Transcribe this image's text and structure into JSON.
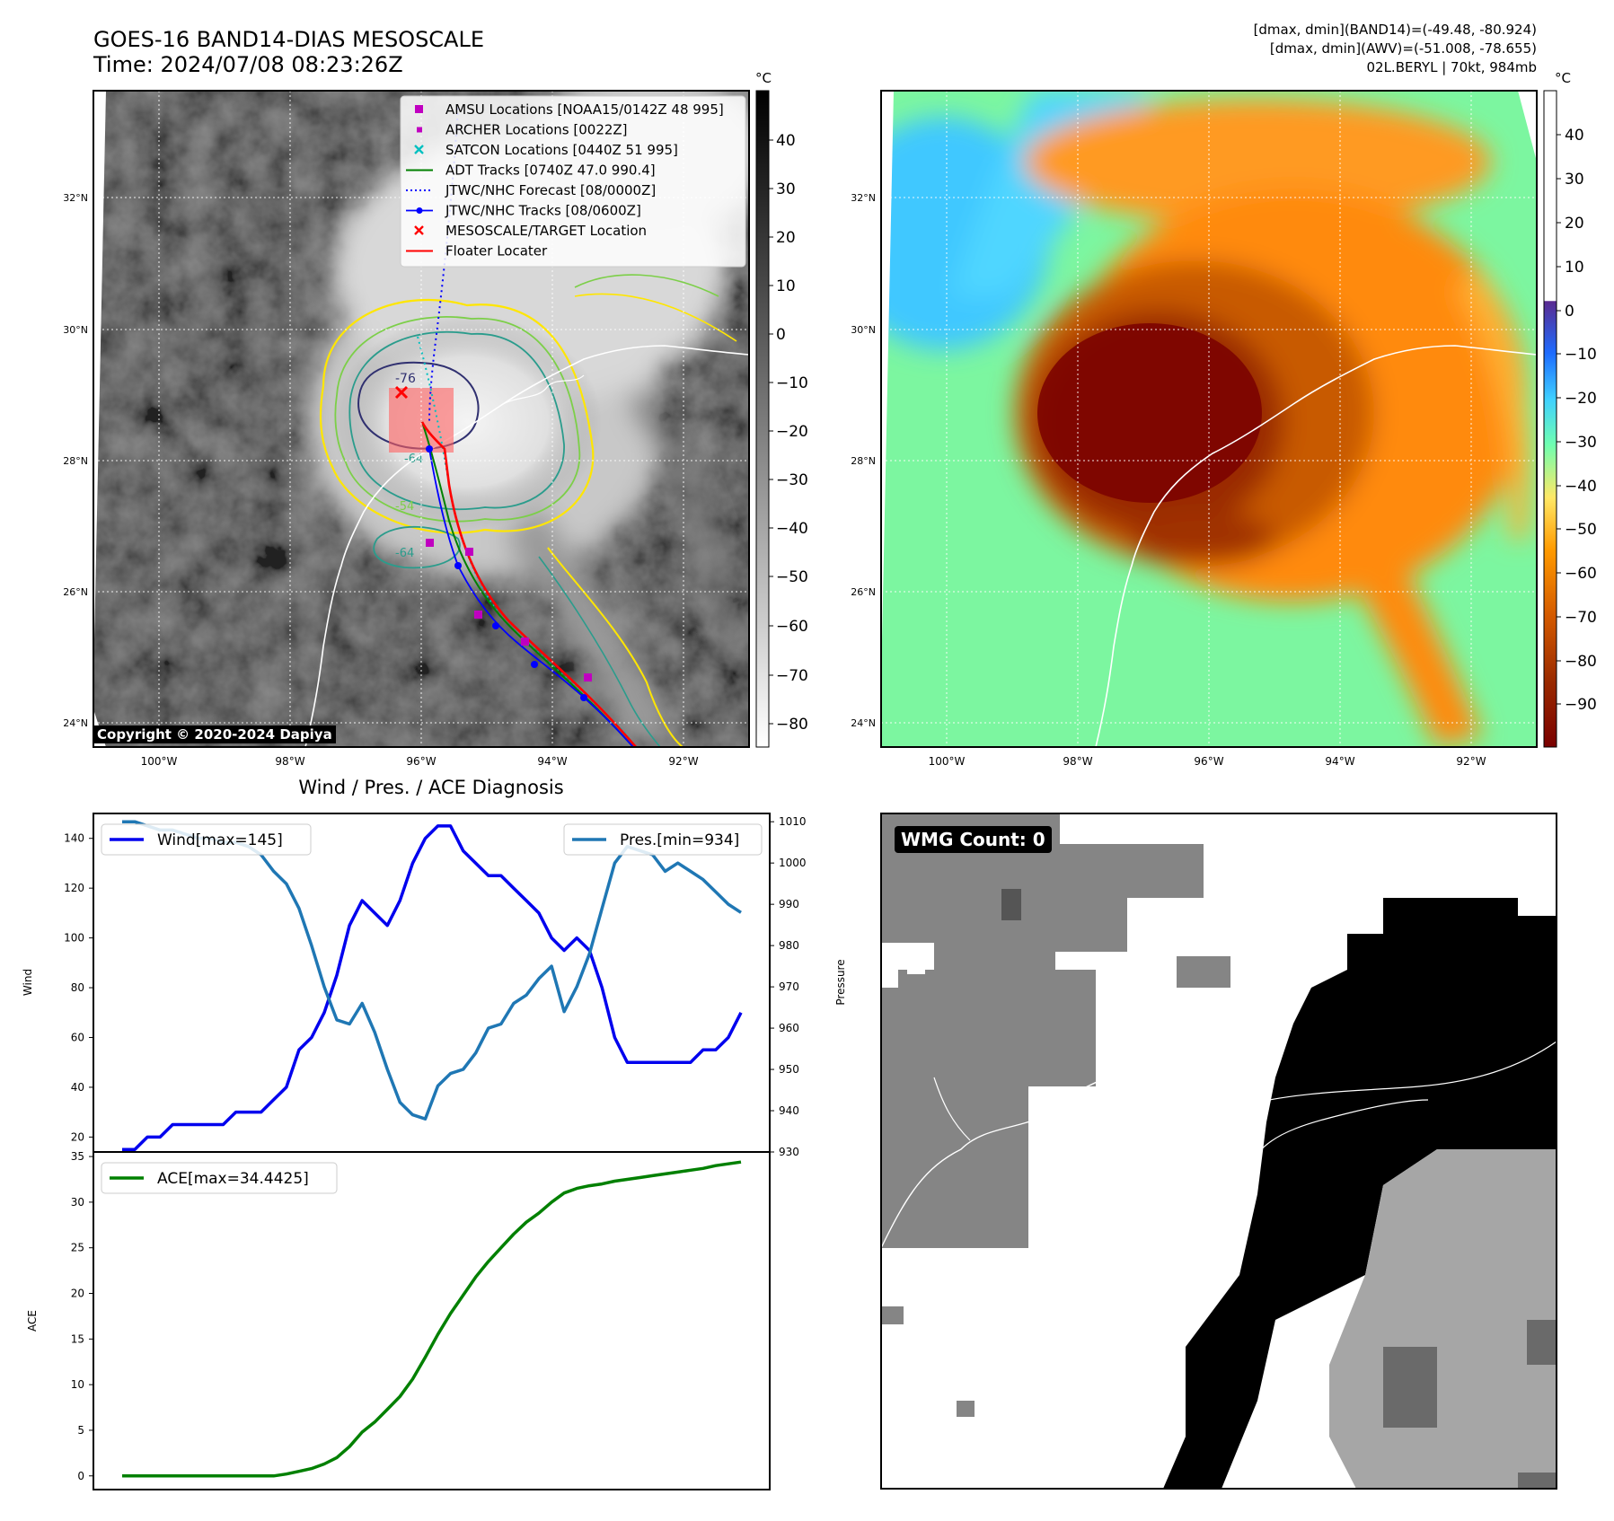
{
  "header": {
    "title_line1": "GOES-16 BAND14-DIAS MESOSCALE",
    "title_line2": "Time: 2024/07/08 08:23:26Z",
    "stats_line1": "[dmax, dmin](BAND14)=(-49.48, -80.924)",
    "stats_line2": "[dmax, dmin](AWV)=(-51.008, -78.655)",
    "stats_line3": "02L.BERYL | 70kt, 984mb"
  },
  "maps": {
    "lat_ticks": [
      "32°N",
      "30°N",
      "28°N",
      "26°N",
      "24°N"
    ],
    "lon_ticks": [
      "100°W",
      "98°W",
      "96°W",
      "94°W",
      "92°W"
    ],
    "copyright": "Copyright © 2020-2024 Dapiya",
    "contour_labels": [
      "-76",
      "-64",
      "-64",
      "-54"
    ],
    "legend": [
      {
        "label": "AMSU Locations [NOAA15/0142Z 48 995]",
        "color": "#c000c0",
        "marker": "square"
      },
      {
        "label": "ARCHER Locations [0022Z]",
        "color": "#c000c0",
        "marker": "square-small"
      },
      {
        "label": "SATCON Locations [0440Z 51 995]",
        "color": "#00c0c0",
        "marker": "x"
      },
      {
        "label": "ADT Tracks [0740Z 47.0 990.4]",
        "color": "#008000",
        "marker": "line"
      },
      {
        "label": "JTWC/NHC Forecast [08/0000Z]",
        "color": "#0000ff",
        "marker": "dotted"
      },
      {
        "label": "JTWC/NHC Tracks [08/0600Z]",
        "color": "#0000ff",
        "marker": "line-dot"
      },
      {
        "label": "MESOSCALE/TARGET Location",
        "color": "#ff0000",
        "marker": "x"
      },
      {
        "label": "Floater Locater",
        "color": "#ff0000",
        "marker": "line"
      }
    ],
    "colorbar_unit": "°C",
    "colorbar_ir_ticks": [
      "40",
      "30",
      "20",
      "10",
      "0",
      "−10",
      "−20",
      "−30",
      "−40",
      "−50",
      "−60",
      "−70",
      "−80"
    ],
    "colorbar_dias_ticks": [
      "40",
      "30",
      "20",
      "10",
      "0",
      "−10",
      "−20",
      "−30",
      "−40",
      "−50",
      "−60",
      "−70",
      "−80",
      "−90"
    ]
  },
  "chart_data": [
    {
      "type": "line",
      "title": "Wind / Pres. / ACE Diagnosis",
      "ylabel": "Wind",
      "ylabel_right": "Pressure",
      "ylim": [
        14,
        150
      ],
      "ylim_right": [
        930,
        1012
      ],
      "yticks": [
        20,
        40,
        60,
        80,
        100,
        120,
        140
      ],
      "yticks_right": [
        930,
        940,
        950,
        960,
        970,
        980,
        990,
        1000,
        1010
      ],
      "x": [
        0,
        1,
        2,
        3,
        4,
        5,
        6,
        7,
        8,
        9,
        10,
        11,
        12,
        13,
        14,
        15,
        16,
        17,
        18,
        19,
        20,
        21,
        22,
        23,
        24,
        25,
        26,
        27,
        28,
        29,
        30,
        31,
        32,
        33,
        34,
        35,
        36,
        37,
        38,
        39,
        40,
        41,
        42,
        43,
        44,
        45,
        46,
        47,
        48,
        49
      ],
      "series": [
        {
          "name": "Wind[max=145]",
          "axis": "left",
          "color": "#0000ee",
          "values": [
            15,
            15,
            20,
            20,
            25,
            25,
            25,
            25,
            25,
            30,
            30,
            30,
            35,
            40,
            55,
            60,
            70,
            85,
            105,
            115,
            110,
            105,
            115,
            130,
            140,
            145,
            145,
            135,
            130,
            125,
            125,
            120,
            115,
            110,
            100,
            95,
            100,
            95,
            80,
            60,
            50,
            50,
            50,
            50,
            50,
            50,
            55,
            55,
            60,
            70
          ]
        },
        {
          "name": "Pres.[min=934]",
          "axis": "right",
          "color": "#1f77b4",
          "values": [
            1010,
            1010,
            1009,
            1008,
            1008,
            1007,
            1006,
            1006,
            1005,
            1005,
            1004,
            1002,
            998,
            995,
            989,
            980,
            970,
            962,
            961,
            966,
            959,
            950,
            942,
            939,
            938,
            946,
            949,
            950,
            954,
            960,
            961,
            966,
            968,
            972,
            975,
            964,
            970,
            978,
            989,
            1000,
            1004,
            1003,
            1002,
            998,
            1000,
            998,
            996,
            993,
            990,
            988
          ]
        }
      ]
    },
    {
      "type": "area",
      "ylabel": "ACE",
      "ylim": [
        -1.5,
        35.5
      ],
      "yticks": [
        0,
        5,
        10,
        15,
        20,
        25,
        30,
        35
      ],
      "series": [
        {
          "name": "ACE[max=34.4425]",
          "color": "#008000",
          "values": [
            0,
            0,
            0,
            0,
            0,
            0,
            0,
            0,
            0,
            0,
            0,
            0,
            0,
            0.2,
            0.5,
            0.8,
            1.3,
            2.0,
            3.2,
            4.8,
            5.9,
            7.3,
            8.7,
            10.6,
            13.0,
            15.5,
            17.8,
            19.8,
            21.8,
            23.5,
            25.0,
            26.5,
            27.8,
            28.8,
            30.0,
            31.0,
            31.5,
            31.8,
            32.0,
            32.3,
            32.5,
            32.7,
            32.9,
            33.1,
            33.3,
            33.5,
            33.7,
            34.0,
            34.2,
            34.4
          ]
        }
      ]
    }
  ],
  "wmg": {
    "label": "WMG Count: 0"
  }
}
